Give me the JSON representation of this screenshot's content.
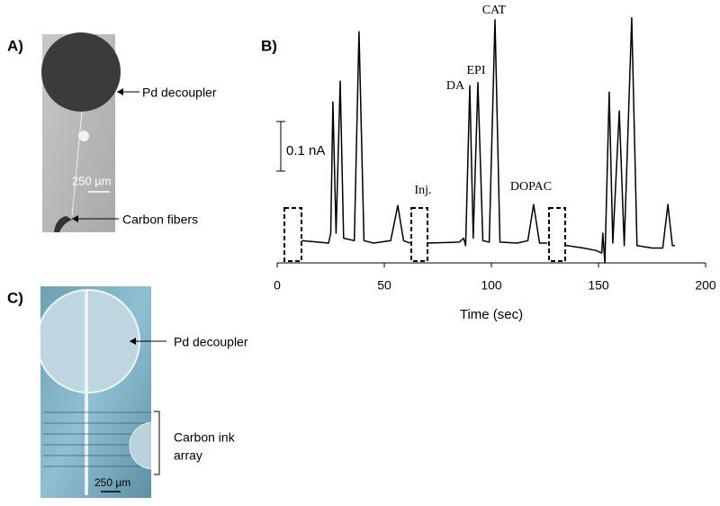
{
  "panel_a": {
    "label": "A)",
    "pd_label": "Pd decoupler",
    "scale_label": "250 µm",
    "fiber_label": "Carbon fibers"
  },
  "panel_c": {
    "label": "C)",
    "pd_label": "Pd decoupler",
    "array_label": [
      "Carbon ink",
      "array"
    ],
    "scale_label": "250 µm"
  },
  "chart_data": {
    "type": "line",
    "panel_label": "B)",
    "xlabel": "Time (sec)",
    "color": "#000000",
    "annotations": [
      "Inj.",
      "DA",
      "EPI",
      "CAT",
      "DOPAC"
    ],
    "scale_bar": {
      "value": 0.1,
      "label": "0.1 nA"
    },
    "x": [
      11.5,
      24,
      25,
      26.0,
      27.5,
      29.4,
      31,
      36,
      38.2,
      40.5,
      45,
      53,
      56.3,
      59,
      62,
      66,
      70,
      85,
      87,
      88,
      89.9,
      91.5,
      93.7,
      96,
      99,
      101.7,
      104,
      112,
      117,
      119.7,
      122.5,
      126,
      130,
      134,
      143,
      149,
      151.5,
      152,
      153,
      155,
      156.7,
      159.7,
      162,
      165.5,
      168,
      175,
      180,
      182.4,
      184.5,
      185.7
    ],
    "values": [
      0.005,
      0.0,
      0.02,
      0.285,
      0.02,
      0.327,
      0.01,
      0.005,
      0.427,
      0.005,
      0.0,
      0.005,
      0.076,
      0.005,
      0.0,
      null,
      0.0,
      0.002,
      0.01,
      -0.005,
      0.318,
      0.01,
      0.324,
      0.005,
      0.002,
      0.451,
      0.002,
      0.0,
      0.005,
      0.078,
      0.0,
      0.0,
      null,
      -0.004,
      -0.01,
      -0.015,
      -0.02,
      0.02,
      -0.04,
      0.305,
      0.0,
      0.267,
      -0.005,
      0.455,
      -0.005,
      -0.01,
      -0.01,
      0.078,
      -0.005,
      -0.005
    ],
    "xlim": [
      0,
      200
    ],
    "xticks": [
      0,
      50,
      100,
      150,
      200
    ],
    "ylim": [
      -0.04,
      0.47
    ]
  }
}
